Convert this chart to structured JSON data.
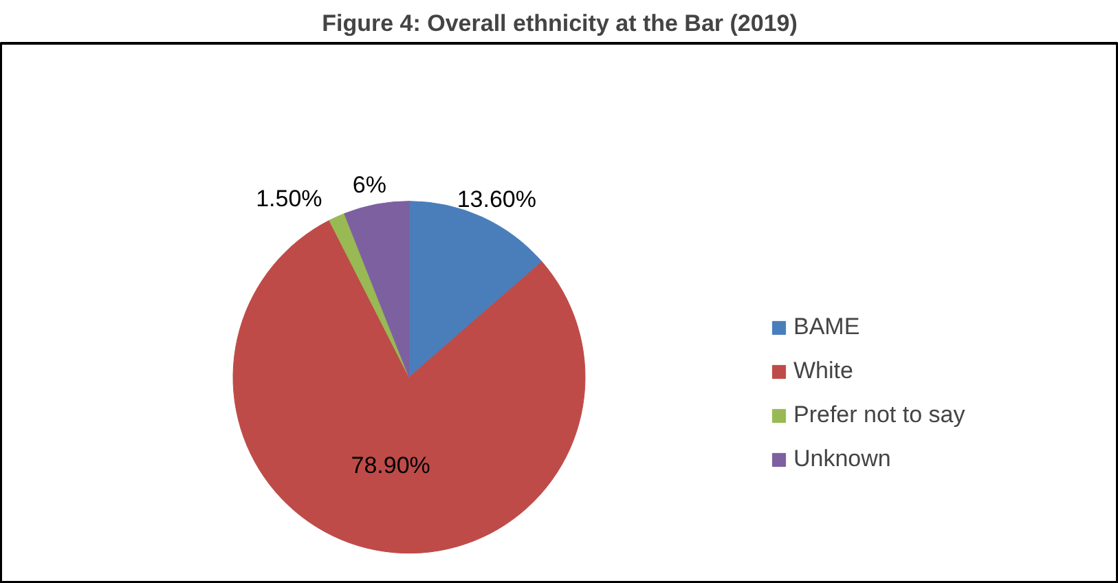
{
  "chart_data": {
    "type": "pie",
    "title": "Figure 4: Overall ethnicity at the Bar (2019)",
    "categories": [
      "BAME",
      "White",
      "Prefer not to say",
      "Unknown"
    ],
    "values": [
      13.6,
      78.9,
      1.5,
      6
    ],
    "colors": [
      "#4a7ebb",
      "#be4b48",
      "#98b954",
      "#7d60a0"
    ],
    "value_labels": [
      "13.60%",
      "78.90%",
      "1.50%",
      "6%"
    ],
    "legend": "right"
  }
}
